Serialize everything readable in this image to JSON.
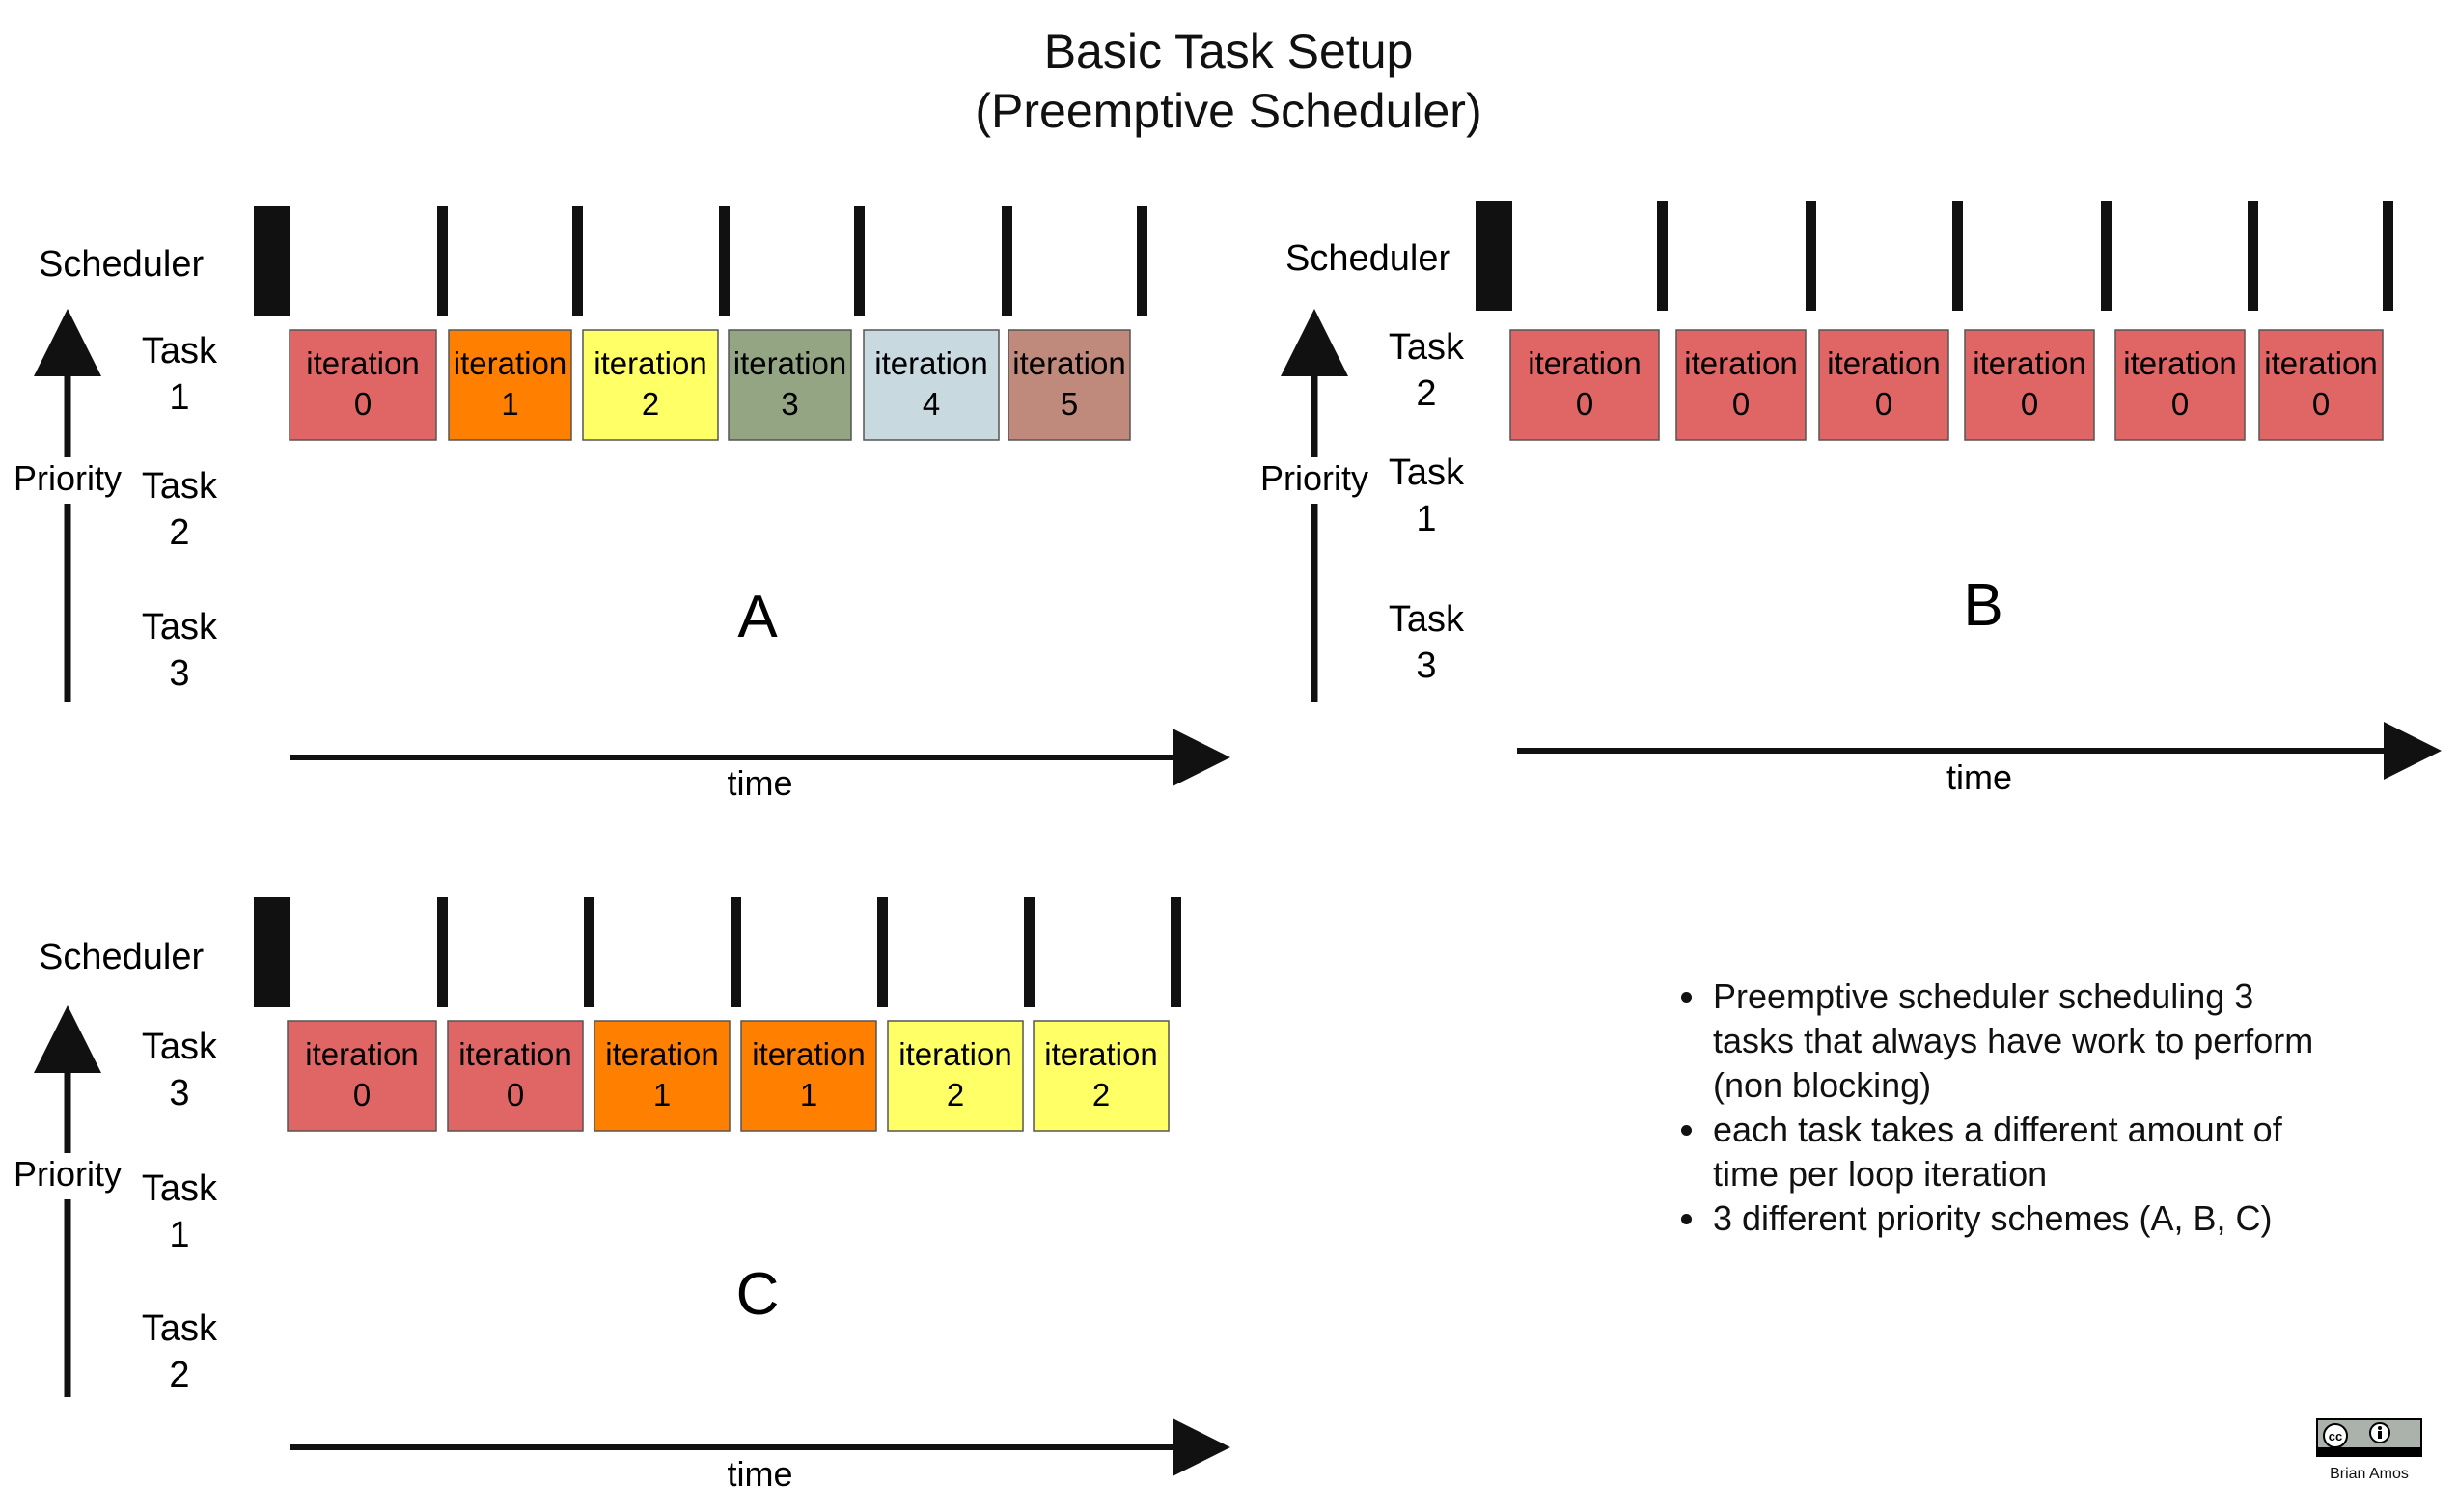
{
  "title": {
    "line1": "Basic Task Setup",
    "line2": "(Preemptive Scheduler)"
  },
  "common": {
    "scheduler_label": "Scheduler",
    "priority_label": "Priority",
    "time_label": "time",
    "task_word": "Task",
    "iteration_word": "iteration"
  },
  "panels": [
    {
      "id": "A",
      "letter": "A",
      "task_rows": [
        "1",
        "2",
        "3"
      ],
      "scheduler_ticks": 7,
      "blocks": [
        {
          "task": "1",
          "iteration": "0",
          "color": "#e06666"
        },
        {
          "task": "1",
          "iteration": "1",
          "color": "#ff8000"
        },
        {
          "task": "1",
          "iteration": "2",
          "color": "#ffff66"
        },
        {
          "task": "1",
          "iteration": "3",
          "color": "#93a583"
        },
        {
          "task": "1",
          "iteration": "4",
          "color": "#c9d9e0"
        },
        {
          "task": "1",
          "iteration": "5",
          "color": "#bf8a7c"
        }
      ]
    },
    {
      "id": "B",
      "letter": "B",
      "task_rows": [
        "2",
        "1",
        "3"
      ],
      "scheduler_ticks": 7,
      "blocks": [
        {
          "task": "2",
          "iteration": "0",
          "color": "#e06666"
        },
        {
          "task": "2",
          "iteration": "0",
          "color": "#e06666"
        },
        {
          "task": "2",
          "iteration": "0",
          "color": "#e06666"
        },
        {
          "task": "2",
          "iteration": "0",
          "color": "#e06666"
        },
        {
          "task": "2",
          "iteration": "0",
          "color": "#e06666"
        },
        {
          "task": "2",
          "iteration": "0",
          "color": "#e06666"
        }
      ]
    },
    {
      "id": "C",
      "letter": "C",
      "task_rows": [
        "3",
        "1",
        "2"
      ],
      "scheduler_ticks": 7,
      "blocks": [
        {
          "task": "3",
          "iteration": "0",
          "color": "#e06666"
        },
        {
          "task": "3",
          "iteration": "0",
          "color": "#e06666"
        },
        {
          "task": "3",
          "iteration": "1",
          "color": "#ff8000"
        },
        {
          "task": "3",
          "iteration": "1",
          "color": "#ff8000"
        },
        {
          "task": "3",
          "iteration": "2",
          "color": "#ffff66"
        },
        {
          "task": "3",
          "iteration": "2",
          "color": "#ffff66"
        }
      ]
    }
  ],
  "notes": [
    "Preemptive scheduler scheduling 3 tasks that always have work to perform (non blocking)",
    "each task takes a different amount of time per loop iteration",
    "3 different priority schemes (A, B, C)"
  ],
  "credit": {
    "author": "Brian Amos",
    "license_icon": "cc-by-icon"
  }
}
